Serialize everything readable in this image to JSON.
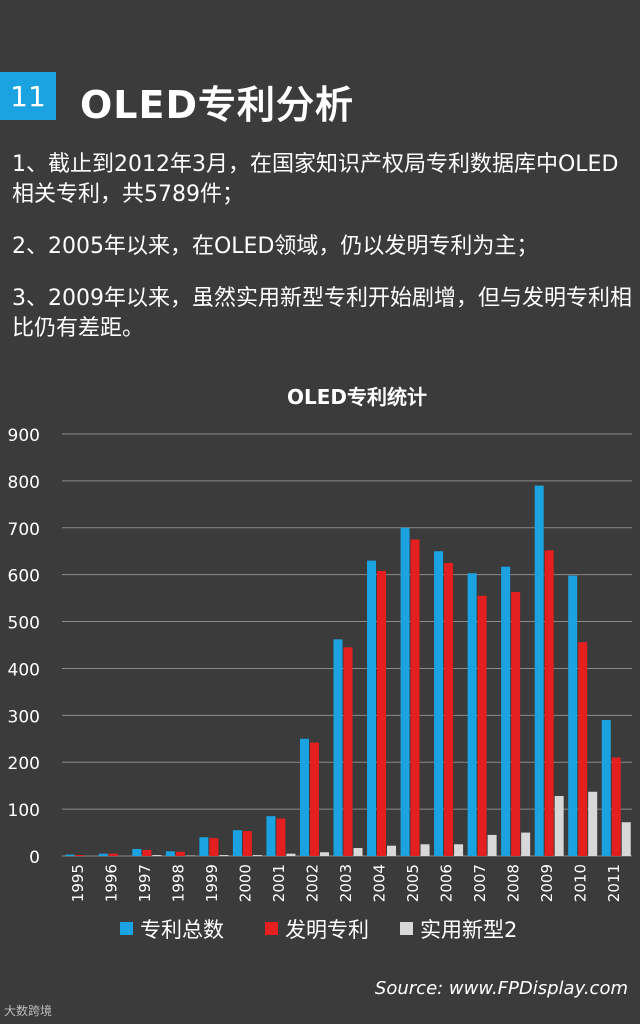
{
  "header": {
    "number": "11",
    "title": "OLED专利分析"
  },
  "points": [
    "1、截止到2012年3月，在国家知识产权局专利数据库中OLED相关专利，共5789件；",
    "2、2005年以来，在OLED领域，仍以发明专利为主；",
    "3、2009年以来，虽然实用新型专利开始剧增，但与发明专利相比仍有差距。"
  ],
  "chart_data": {
    "type": "bar",
    "title": "OLED专利统计",
    "xlabel": "",
    "ylabel": "",
    "ylim": [
      0,
      900
    ],
    "yticks": [
      0,
      100,
      200,
      300,
      400,
      500,
      600,
      700,
      800,
      900
    ],
    "grid": true,
    "legend_position": "bottom",
    "categories": [
      "1995",
      "1996",
      "1997",
      "1998",
      "1999",
      "2000",
      "2001",
      "2002",
      "2003",
      "2004",
      "2005",
      "2006",
      "2007",
      "2008",
      "2009",
      "2010",
      "2011"
    ],
    "series": [
      {
        "name": "专利总数",
        "color": "#1aa3e0",
        "values": [
          3,
          5,
          15,
          10,
          40,
          55,
          85,
          250,
          462,
          630,
          700,
          650,
          603,
          617,
          790,
          598,
          290
        ]
      },
      {
        "name": "发明专利",
        "color": "#e41f1f",
        "values": [
          2,
          5,
          13,
          9,
          38,
          53,
          80,
          242,
          445,
          608,
          675,
          625,
          555,
          563,
          652,
          456,
          210
        ]
      },
      {
        "name": "实用新型2",
        "color": "#d8d8d8",
        "values": [
          0,
          0,
          2,
          1,
          2,
          2,
          5,
          8,
          17,
          22,
          25,
          25,
          45,
          50,
          128,
          137,
          72
        ]
      }
    ]
  },
  "source": "Source: www.FPDisplay.com",
  "watermark": "大数跨境"
}
